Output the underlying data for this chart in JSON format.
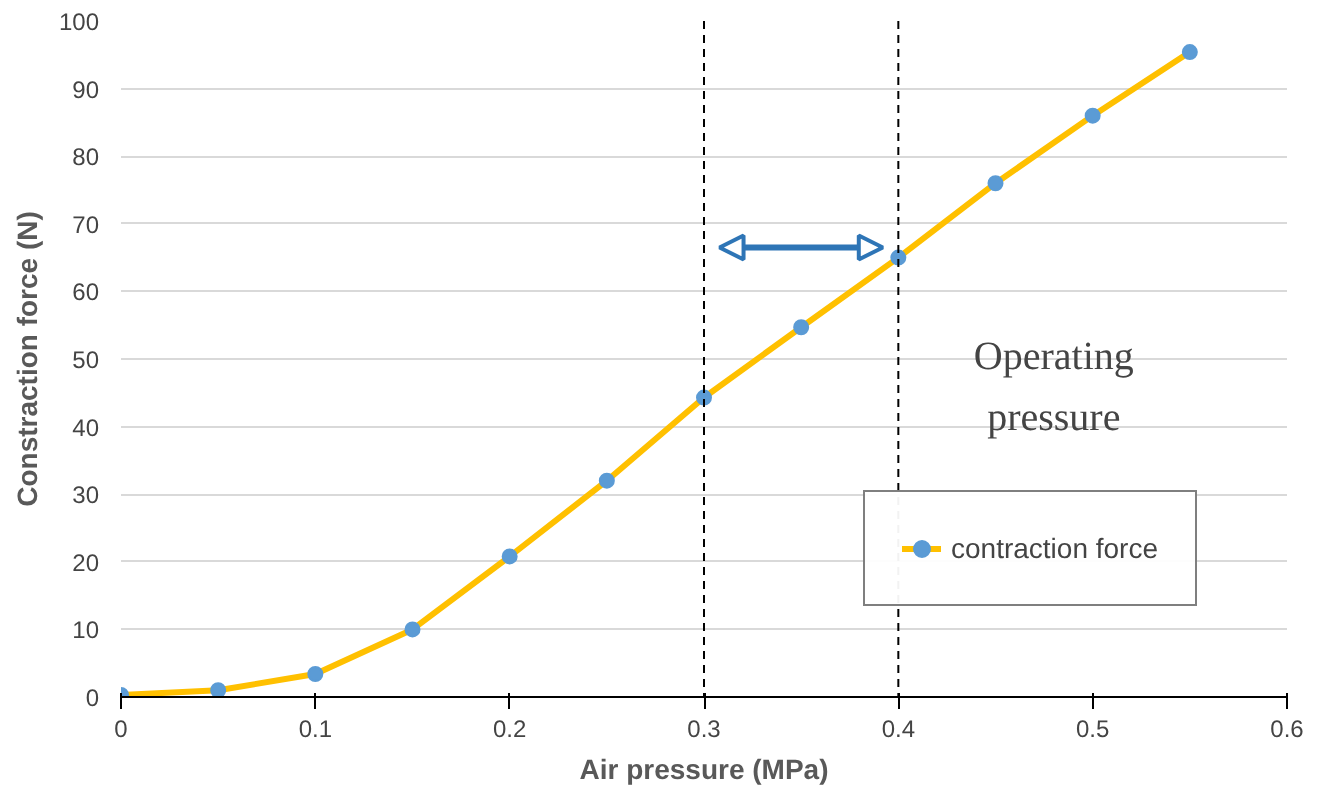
{
  "chart_data": {
    "type": "line",
    "xlabel": "Air pressure (MPa)",
    "ylabel": "Constraction force (N)",
    "x": [
      0,
      0.05,
      0.1,
      0.15,
      0.2,
      0.25,
      0.3,
      0.35,
      0.4,
      0.45,
      0.5,
      0.55
    ],
    "series": [
      {
        "name": "contraction force",
        "color": "#ffc000",
        "colors": [
          "#5b9bd5",
          "#5b9bd5",
          "#5b9bd5",
          "#5b9bd5",
          "#5b9bd5",
          "#5b9bd5",
          "#5b9bd5",
          "#5b9bd5",
          "#5b9bd5",
          "#5b9bd5",
          "#5b9bd5",
          "#5b9bd5"
        ],
        "values": [
          0.3,
          1,
          3.4,
          10,
          20.8,
          32,
          44.3,
          54.7,
          65,
          76,
          86,
          95.4
        ]
      }
    ],
    "xlim": [
      0,
      0.6
    ],
    "xticks": [
      0,
      0.1,
      0.2,
      0.3,
      0.4,
      0.5,
      0.6
    ],
    "ylim": [
      0,
      100
    ],
    "yticks": [
      0,
      10,
      20,
      30,
      40,
      50,
      60,
      70,
      80,
      90,
      100
    ],
    "grid": "y",
    "legend": "right",
    "marker": "circle",
    "line_style": "solid",
    "ref_lines": [
      {
        "axis": "x",
        "value": 0.3,
        "color": "#000000",
        "line_style": "dashed"
      },
      {
        "axis": "x",
        "value": 0.4,
        "color": "#000000",
        "line_style": "dashed"
      }
    ],
    "annotations": [
      "Operating pressure"
    ]
  }
}
